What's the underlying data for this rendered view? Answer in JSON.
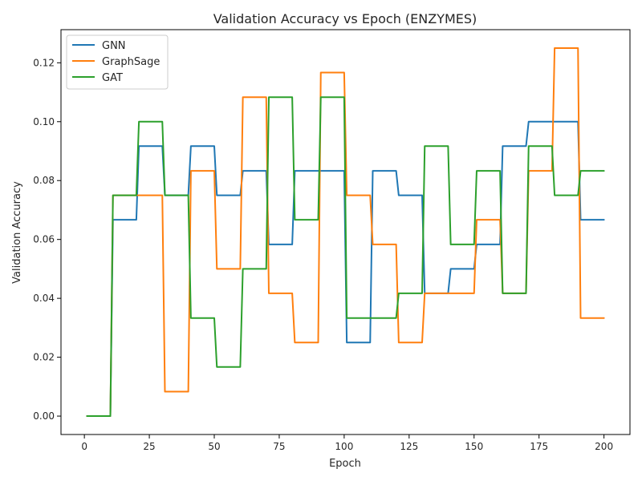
{
  "chart_data": {
    "type": "line",
    "title": "Validation Accuracy vs Epoch (ENZYMES)",
    "xlabel": "Epoch",
    "ylabel": "Validation Accuracy",
    "xlim": [
      -9,
      210
    ],
    "ylim": [
      -0.00625,
      0.13125
    ],
    "xticks": [
      0,
      25,
      50,
      75,
      100,
      125,
      150,
      175,
      200
    ],
    "yticks": [
      0.0,
      0.02,
      0.04,
      0.06,
      0.08,
      0.1,
      0.12
    ],
    "ytick_labels": [
      "0.00",
      "0.02",
      "0.04",
      "0.06",
      "0.08",
      "0.10",
      "0.12"
    ],
    "legend_position": "top-left",
    "grid": false,
    "series": [
      {
        "name": "GNN",
        "color": "#1f77b4",
        "values": [
          [
            1,
            0.0
          ],
          [
            10,
            0.0
          ],
          [
            11,
            0.0667
          ],
          [
            20,
            0.0667
          ],
          [
            21,
            0.0917
          ],
          [
            30,
            0.0917
          ],
          [
            31,
            0.075
          ],
          [
            40,
            0.075
          ],
          [
            41,
            0.0917
          ],
          [
            50,
            0.0917
          ],
          [
            51,
            0.075
          ],
          [
            60,
            0.075
          ],
          [
            61,
            0.0833
          ],
          [
            70,
            0.0833
          ],
          [
            71,
            0.0583
          ],
          [
            80,
            0.0583
          ],
          [
            81,
            0.0833
          ],
          [
            90,
            0.0833
          ],
          [
            91,
            0.0833
          ],
          [
            100,
            0.0833
          ],
          [
            101,
            0.025
          ],
          [
            110,
            0.025
          ],
          [
            111,
            0.0833
          ],
          [
            120,
            0.0833
          ],
          [
            121,
            0.075
          ],
          [
            130,
            0.075
          ],
          [
            131,
            0.0417
          ],
          [
            140,
            0.0417
          ],
          [
            141,
            0.05
          ],
          [
            150,
            0.05
          ],
          [
            151,
            0.0583
          ],
          [
            160,
            0.0583
          ],
          [
            161,
            0.0917
          ],
          [
            170,
            0.0917
          ],
          [
            171,
            0.1
          ],
          [
            180,
            0.1
          ],
          [
            181,
            0.1
          ],
          [
            190,
            0.1
          ],
          [
            191,
            0.0667
          ],
          [
            200,
            0.0667
          ]
        ]
      },
      {
        "name": "GraphSage",
        "color": "#ff7f0e",
        "values": [
          [
            1,
            0.0
          ],
          [
            10,
            0.0
          ],
          [
            11,
            0.075
          ],
          [
            20,
            0.075
          ],
          [
            21,
            0.075
          ],
          [
            30,
            0.075
          ],
          [
            31,
            0.0083
          ],
          [
            40,
            0.0083
          ],
          [
            41,
            0.0833
          ],
          [
            50,
            0.0833
          ],
          [
            51,
            0.05
          ],
          [
            60,
            0.05
          ],
          [
            61,
            0.1083
          ],
          [
            70,
            0.1083
          ],
          [
            71,
            0.0417
          ],
          [
            80,
            0.0417
          ],
          [
            81,
            0.025
          ],
          [
            90,
            0.025
          ],
          [
            91,
            0.1167
          ],
          [
            100,
            0.1167
          ],
          [
            101,
            0.075
          ],
          [
            110,
            0.075
          ],
          [
            111,
            0.0583
          ],
          [
            120,
            0.0583
          ],
          [
            121,
            0.025
          ],
          [
            130,
            0.025
          ],
          [
            131,
            0.0417
          ],
          [
            140,
            0.0417
          ],
          [
            141,
            0.0417
          ],
          [
            150,
            0.0417
          ],
          [
            151,
            0.0667
          ],
          [
            160,
            0.0667
          ],
          [
            161,
            0.0417
          ],
          [
            170,
            0.0417
          ],
          [
            171,
            0.0833
          ],
          [
            180,
            0.0833
          ],
          [
            181,
            0.125
          ],
          [
            190,
            0.125
          ],
          [
            191,
            0.0333
          ],
          [
            200,
            0.0333
          ]
        ]
      },
      {
        "name": "GAT",
        "color": "#2ca02c",
        "values": [
          [
            1,
            0.0
          ],
          [
            10,
            0.0
          ],
          [
            11,
            0.075
          ],
          [
            20,
            0.075
          ],
          [
            21,
            0.1
          ],
          [
            30,
            0.1
          ],
          [
            31,
            0.075
          ],
          [
            40,
            0.075
          ],
          [
            41,
            0.0333
          ],
          [
            50,
            0.0333
          ],
          [
            51,
            0.0167
          ],
          [
            60,
            0.0167
          ],
          [
            61,
            0.05
          ],
          [
            70,
            0.05
          ],
          [
            71,
            0.1083
          ],
          [
            80,
            0.1083
          ],
          [
            81,
            0.0667
          ],
          [
            90,
            0.0667
          ],
          [
            91,
            0.1083
          ],
          [
            100,
            0.1083
          ],
          [
            101,
            0.0333
          ],
          [
            110,
            0.0333
          ],
          [
            111,
            0.0333
          ],
          [
            120,
            0.0333
          ],
          [
            121,
            0.0417
          ],
          [
            130,
            0.0417
          ],
          [
            131,
            0.0917
          ],
          [
            140,
            0.0917
          ],
          [
            141,
            0.0583
          ],
          [
            150,
            0.0583
          ],
          [
            151,
            0.0833
          ],
          [
            160,
            0.0833
          ],
          [
            161,
            0.0417
          ],
          [
            170,
            0.0417
          ],
          [
            171,
            0.0917
          ],
          [
            180,
            0.0917
          ],
          [
            181,
            0.075
          ],
          [
            190,
            0.075
          ],
          [
            191,
            0.0833
          ],
          [
            200,
            0.0833
          ]
        ]
      }
    ]
  }
}
